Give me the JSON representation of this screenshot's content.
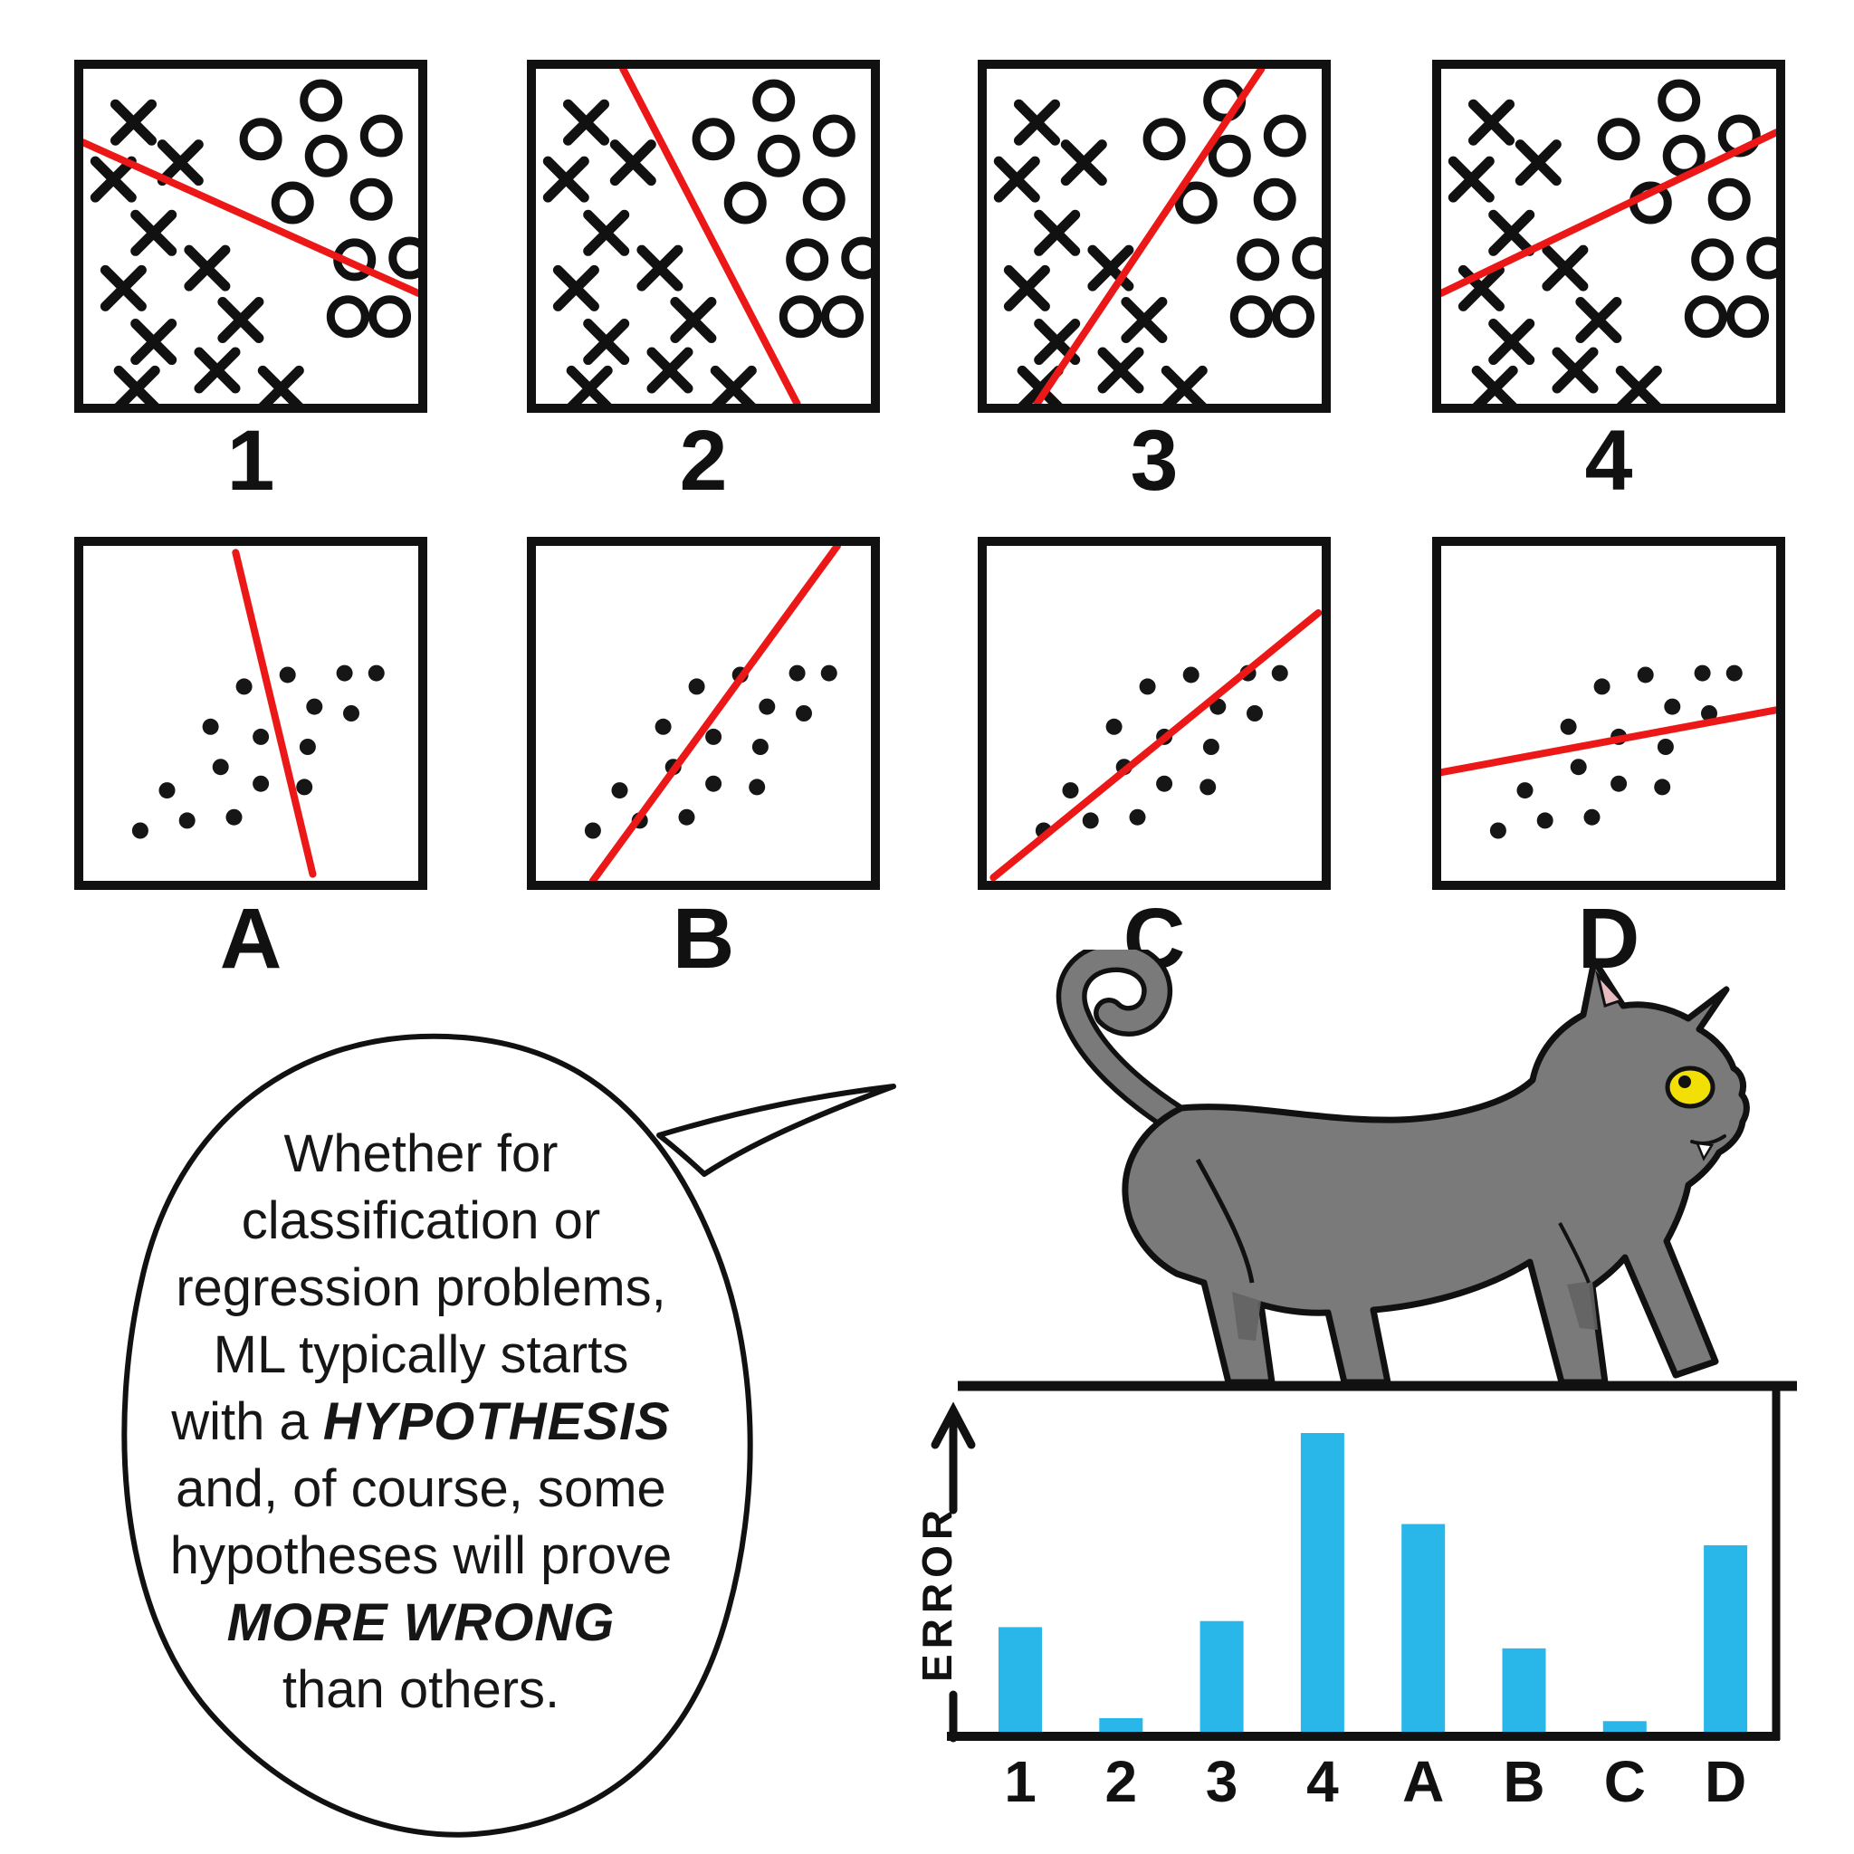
{
  "colors": {
    "line_red": "#ec1717",
    "bar_blue": "#29b6e8",
    "ink_black": "#111111",
    "cat_gray": "#7a7a7a",
    "cat_gray_dark": "#636363",
    "eye_yellow": "#f2df05",
    "ear_pink": "#e6bcc0"
  },
  "hypothesis_panels": {
    "classification": {
      "panels": [
        {
          "label": "1",
          "line": [
            0.0,
            0.22,
            1.0,
            0.67
          ]
        },
        {
          "label": "2",
          "line": [
            0.26,
            0.0,
            0.78,
            1.0
          ]
        },
        {
          "label": "3",
          "line": [
            0.15,
            1.0,
            0.82,
            0.0
          ]
        },
        {
          "label": "4",
          "line": [
            0.0,
            0.67,
            1.0,
            0.19
          ]
        }
      ],
      "x_marks": [
        [
          0.15,
          0.16
        ],
        [
          0.09,
          0.33
        ],
        [
          0.29,
          0.28
        ],
        [
          0.21,
          0.49
        ],
        [
          0.12,
          0.655
        ],
        [
          0.37,
          0.595
        ],
        [
          0.47,
          0.75
        ],
        [
          0.21,
          0.815
        ],
        [
          0.4,
          0.9
        ],
        [
          0.16,
          0.955
        ],
        [
          0.59,
          0.955
        ]
      ],
      "o_marks": [
        [
          0.71,
          0.095
        ],
        [
          0.53,
          0.21
        ],
        [
          0.725,
          0.26
        ],
        [
          0.89,
          0.2
        ],
        [
          0.625,
          0.4
        ],
        [
          0.86,
          0.39
        ],
        [
          0.81,
          0.57
        ],
        [
          0.975,
          0.565
        ],
        [
          0.79,
          0.74
        ],
        [
          0.915,
          0.74
        ]
      ]
    },
    "regression": {
      "panels": [
        {
          "label": "A",
          "line": [
            0.455,
            0.02,
            0.685,
            0.98
          ]
        },
        {
          "label": "B",
          "line": [
            0.17,
            1.0,
            0.9,
            0.0
          ]
        },
        {
          "label": "C",
          "line": [
            0.02,
            0.99,
            0.99,
            0.2
          ]
        },
        {
          "label": "D",
          "line": [
            -0.02,
            0.68,
            1.0,
            0.49
          ]
        }
      ],
      "dots": [
        [
          0.48,
          0.42
        ],
        [
          0.61,
          0.385
        ],
        [
          0.78,
          0.38
        ],
        [
          0.875,
          0.38
        ],
        [
          0.69,
          0.48
        ],
        [
          0.8,
          0.5
        ],
        [
          0.38,
          0.54
        ],
        [
          0.53,
          0.57
        ],
        [
          0.67,
          0.6
        ],
        [
          0.41,
          0.66
        ],
        [
          0.53,
          0.71
        ],
        [
          0.66,
          0.72
        ],
        [
          0.25,
          0.73
        ],
        [
          0.31,
          0.82
        ],
        [
          0.45,
          0.81
        ],
        [
          0.17,
          0.85
        ]
      ]
    }
  },
  "speech_bubble": {
    "lines": [
      [
        {
          "t": "Whether for"
        }
      ],
      [
        {
          "t": "classification or"
        }
      ],
      [
        {
          "t": "regression problems,"
        }
      ],
      [
        {
          "t": "ML typically starts"
        }
      ],
      [
        {
          "t": "with a "
        },
        {
          "t": "HYPOTHESIS",
          "em": true
        }
      ],
      [
        {
          "t": "and, of course, some"
        }
      ],
      [
        {
          "t": "hypotheses will prove"
        }
      ],
      [
        {
          "t": "MORE WRONG",
          "em": true
        }
      ],
      [
        {
          "t": "than others."
        }
      ]
    ]
  },
  "chart_data": {
    "type": "bar",
    "title": "",
    "xlabel": "",
    "ylabel": "ERROR",
    "categories": [
      "1",
      "2",
      "3",
      "4",
      "A",
      "B",
      "C",
      "D"
    ],
    "values": [
      0.36,
      0.06,
      0.38,
      1.0,
      0.7,
      0.29,
      0.05,
      0.63
    ],
    "ylim": [
      0,
      1.05
    ],
    "grid": false,
    "legend": "none",
    "note": "relative error height of each hypothesis bar, max bar (4) = 1.0"
  }
}
